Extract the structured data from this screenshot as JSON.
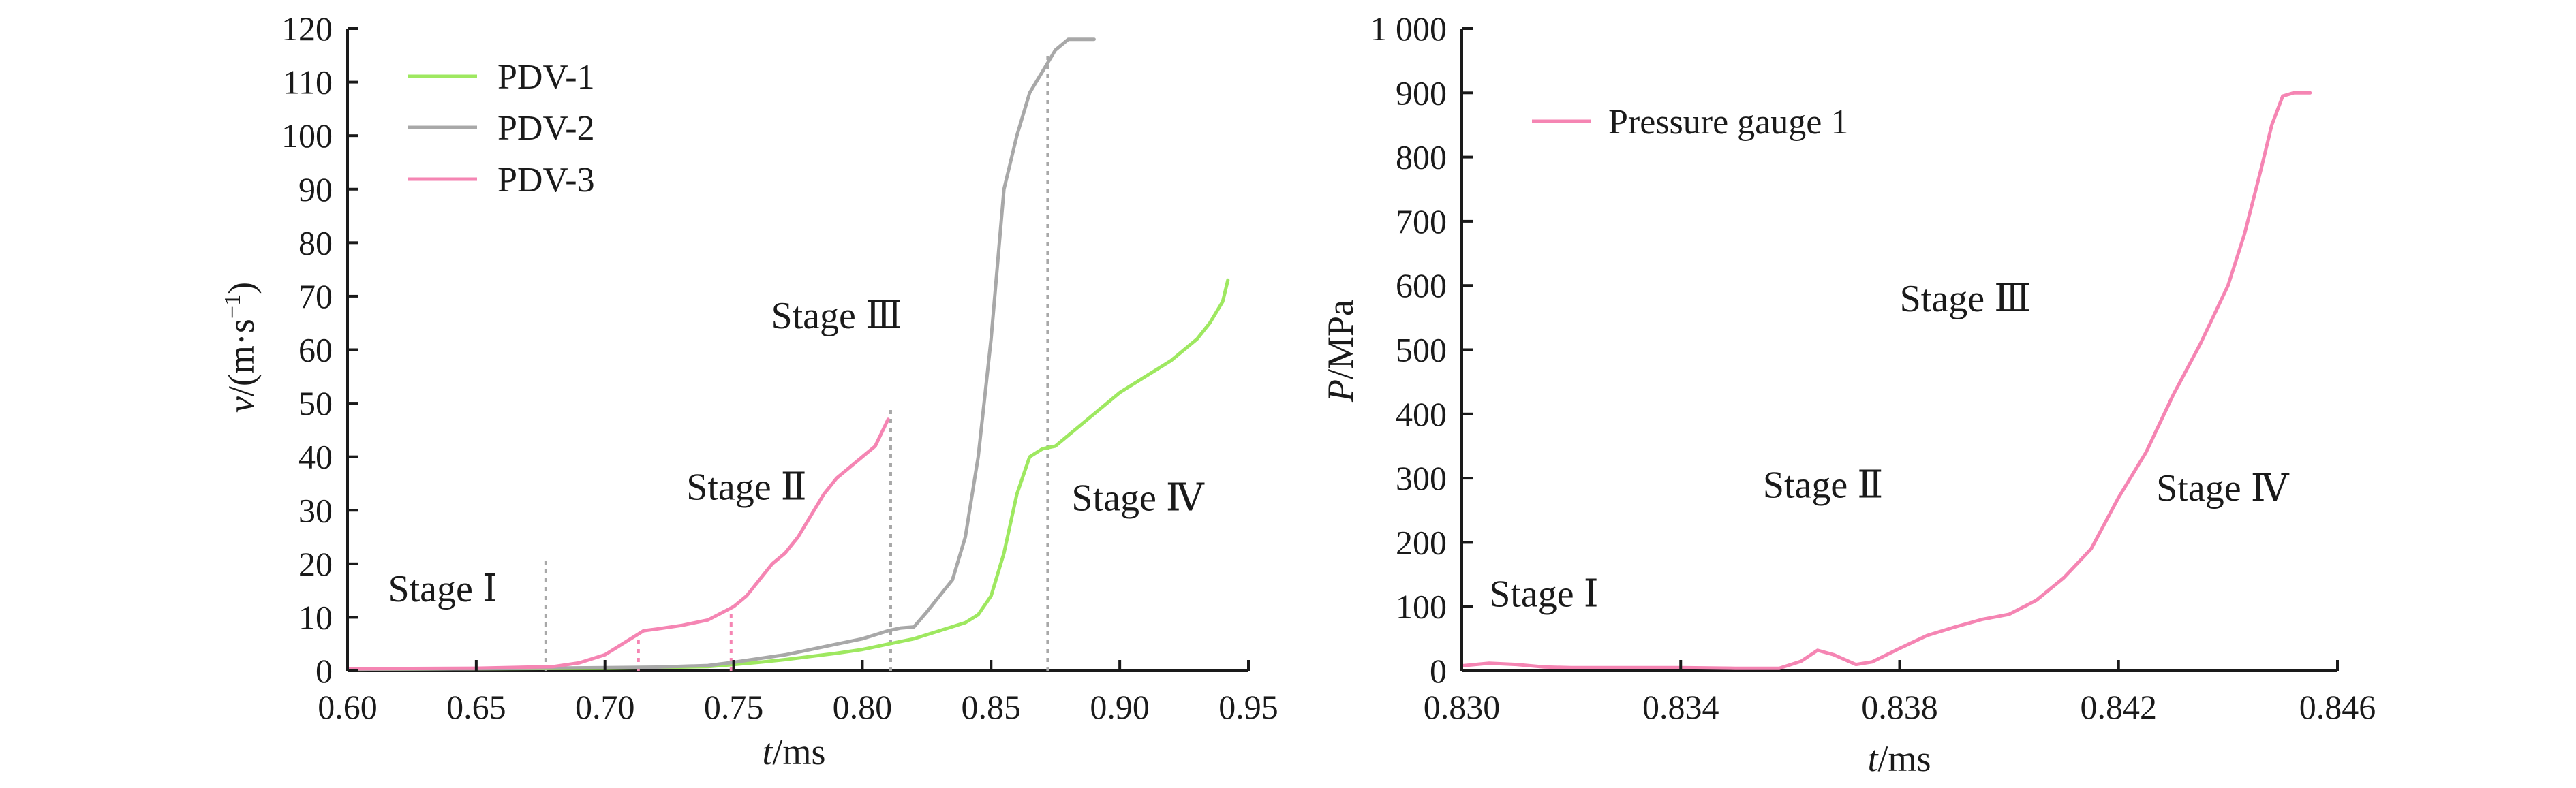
{
  "chart_data": [
    {
      "type": "line",
      "xlabel": {
        "main": "t",
        "unit": "/ms"
      },
      "ylabel": {
        "main": "v",
        "unit": "/(m·s",
        "sup": "−1",
        "tail": ")"
      },
      "xlim": [
        0.6,
        0.95
      ],
      "ylim": [
        0,
        120
      ],
      "xticks": [
        "0.60",
        "0.65",
        "0.70",
        "0.75",
        "0.80",
        "0.85",
        "0.90",
        "0.95"
      ],
      "yticks": [
        "0",
        "10",
        "20",
        "30",
        "40",
        "50",
        "60",
        "70",
        "80",
        "90",
        "100",
        "110",
        "120"
      ],
      "legend_position": "top-left",
      "series": [
        {
          "name": "PDV-1",
          "color": "#9ee860",
          "x": [
            0.6,
            0.65,
            0.7,
            0.72,
            0.74,
            0.75,
            0.76,
            0.77,
            0.78,
            0.79,
            0.8,
            0.81,
            0.82,
            0.83,
            0.84,
            0.845,
            0.85,
            0.855,
            0.86,
            0.865,
            0.87,
            0.875,
            0.88,
            0.885,
            0.89,
            0.9,
            0.91,
            0.92,
            0.93,
            0.935,
            0.94,
            0.942
          ],
          "y": [
            0.3,
            0.4,
            0.5,
            0.6,
            0.8,
            1.2,
            1.6,
            2.1,
            2.7,
            3.3,
            4,
            5,
            6,
            7.5,
            9,
            10.5,
            14,
            22,
            33,
            40,
            41.5,
            42,
            44,
            46,
            48,
            52,
            55,
            58,
            62,
            65,
            69,
            73
          ]
        },
        {
          "name": "PDV-2",
          "color": "#a8a8a8",
          "x": [
            0.6,
            0.65,
            0.7,
            0.72,
            0.74,
            0.75,
            0.76,
            0.77,
            0.78,
            0.79,
            0.8,
            0.81,
            0.815,
            0.82,
            0.825,
            0.83,
            0.835,
            0.84,
            0.845,
            0.85,
            0.855,
            0.86,
            0.865,
            0.87,
            0.875,
            0.88,
            0.885,
            0.89
          ],
          "y": [
            0.3,
            0.4,
            0.6,
            0.7,
            1,
            1.6,
            2.3,
            3,
            4,
            5,
            6,
            7.5,
            8,
            8.2,
            11,
            14,
            17,
            25,
            40,
            62,
            90,
            100,
            108,
            112,
            116,
            118,
            118,
            118
          ]
        },
        {
          "name": "PDV-3",
          "color": "#f585b3",
          "x": [
            0.6,
            0.65,
            0.68,
            0.69,
            0.7,
            0.705,
            0.71,
            0.715,
            0.72,
            0.73,
            0.74,
            0.75,
            0.755,
            0.76,
            0.765,
            0.77,
            0.775,
            0.78,
            0.785,
            0.79,
            0.795,
            0.8,
            0.805,
            0.81
          ],
          "y": [
            0.4,
            0.5,
            0.8,
            1.5,
            3,
            4.5,
            6,
            7.5,
            7.8,
            8.5,
            9.5,
            12,
            14,
            17,
            20,
            22,
            25,
            29,
            33,
            36,
            38,
            40,
            42,
            47
          ]
        }
      ],
      "markers": [
        {
          "x": 0.677,
          "y_top": 21,
          "color": "#a8a8a8"
        },
        {
          "x": 0.713,
          "y_top": 7,
          "color": "#f585b3"
        },
        {
          "x": 0.749,
          "y_top": 12,
          "color": "#f585b3"
        },
        {
          "x": 0.811,
          "y_top": 49,
          "color": "#a8a8a8"
        },
        {
          "x": 0.872,
          "y_top": 115,
          "color": "#a8a8a8"
        }
      ],
      "stage_labels": [
        {
          "text": "Stage Ⅰ",
          "x": 0.637,
          "y": 13
        },
        {
          "text": "Stage Ⅱ",
          "x": 0.755,
          "y": 32
        },
        {
          "text": "Stage Ⅲ",
          "x": 0.79,
          "y": 64
        },
        {
          "text": "Stage Ⅳ",
          "x": 0.907,
          "y": 30
        }
      ]
    },
    {
      "type": "line",
      "xlabel": {
        "main": "t",
        "unit": "/ms"
      },
      "ylabel": {
        "main": "P",
        "unit": "/MPa"
      },
      "xlim": [
        0.83,
        0.846
      ],
      "ylim": [
        0,
        1000
      ],
      "xticks": [
        "0.830",
        "0.834",
        "0.838",
        "0.842",
        "0.846"
      ],
      "xtick_values": [
        0.83,
        0.834,
        0.838,
        0.842,
        0.846
      ],
      "yticks": [
        "0",
        "100",
        "200",
        "300",
        "400",
        "500",
        "600",
        "700",
        "800",
        "900",
        "1 000"
      ],
      "ytick_values": [
        0,
        100,
        200,
        300,
        400,
        500,
        600,
        700,
        800,
        900,
        1000
      ],
      "legend_position": "top-left",
      "series": [
        {
          "name": "Pressure gauge 1",
          "color": "#f585b3",
          "x": [
            0.83,
            0.8305,
            0.831,
            0.8315,
            0.832,
            0.833,
            0.834,
            0.835,
            0.8358,
            0.8362,
            0.8365,
            0.8368,
            0.8372,
            0.8375,
            0.838,
            0.8385,
            0.839,
            0.8395,
            0.84,
            0.8405,
            0.841,
            0.8415,
            0.842,
            0.8425,
            0.843,
            0.8435,
            0.844,
            0.8443,
            0.8446,
            0.8448,
            0.845,
            0.8452,
            0.8455
          ],
          "y": [
            8,
            12,
            10,
            6,
            5,
            5,
            5,
            4,
            4,
            15,
            32,
            25,
            10,
            14,
            35,
            55,
            68,
            80,
            88,
            110,
            145,
            190,
            270,
            340,
            430,
            510,
            600,
            680,
            780,
            850,
            895,
            900,
            900
          ]
        }
      ],
      "stage_labels": [
        {
          "text": "Stage Ⅰ",
          "x": 0.8315,
          "y": 100
        },
        {
          "text": "Stage Ⅱ",
          "x": 0.8366,
          "y": 270
        },
        {
          "text": "Stage Ⅲ",
          "x": 0.8392,
          "y": 560
        },
        {
          "text": "Stage Ⅳ",
          "x": 0.8439,
          "y": 265
        }
      ]
    }
  ]
}
